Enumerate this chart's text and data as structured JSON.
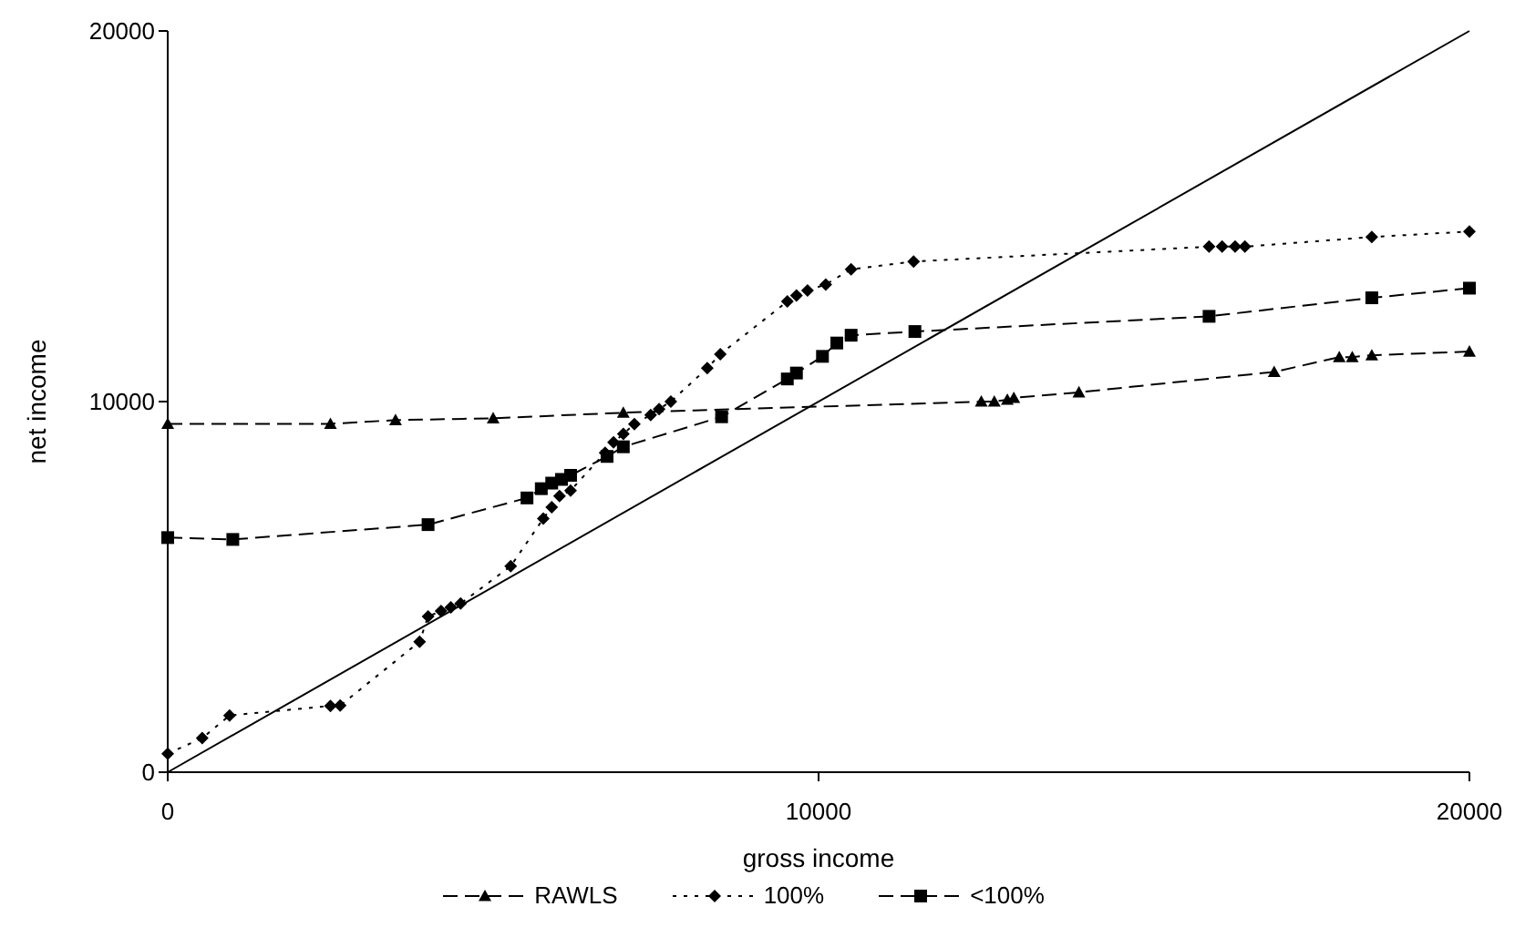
{
  "chart_data": {
    "type": "line",
    "xlabel": "gross income",
    "ylabel": "net income",
    "xlim": [
      0,
      20000
    ],
    "ylim": [
      0,
      20000
    ],
    "xticks": [
      0,
      10000,
      20000
    ],
    "yticks": [
      0,
      10000,
      20000
    ],
    "grid": false,
    "legend": "bottom",
    "series": [
      {
        "name": "RAWLS",
        "color": "#000000",
        "marker": "triangle",
        "line_style": "dashed",
        "x": [
          0,
          2500,
          3500,
          5000,
          7000,
          12500,
          12700,
          12900,
          13000,
          14000,
          17000,
          18000,
          18200,
          18500,
          20000
        ],
        "values": [
          9400,
          9400,
          9500,
          9550,
          9700,
          10000,
          10000,
          10050,
          10100,
          10250,
          10800,
          11200,
          11200,
          11250,
          11350
        ]
      },
      {
        "name": "100%",
        "color": "#000000",
        "marker": "diamond",
        "line_style": "dotted",
        "x": [
          0,
          530,
          950,
          2500,
          2650,
          3870,
          4000,
          4200,
          4350,
          4500,
          5270,
          5770,
          5900,
          6020,
          6190,
          6720,
          6850,
          7000,
          7170,
          7420,
          7550,
          7730,
          8290,
          8490,
          9520,
          9660,
          9830,
          10110,
          10500,
          11460,
          16000,
          16200,
          16400,
          16550,
          18500,
          20000
        ],
        "values": [
          500,
          920,
          1530,
          1790,
          1800,
          3520,
          4200,
          4350,
          4450,
          4550,
          5560,
          6840,
          7150,
          7450,
          7600,
          8620,
          8900,
          9130,
          9390,
          9640,
          9800,
          10000,
          10900,
          11280,
          12700,
          12860,
          13000,
          13160,
          13570,
          13780,
          14180,
          14180,
          14180,
          14180,
          14440,
          14590
        ]
      },
      {
        "name": "<100%",
        "color": "#000000",
        "marker": "square",
        "line_style": "dashed",
        "x": [
          0,
          1000,
          4000,
          5520,
          5740,
          5900,
          6050,
          6190,
          6750,
          7000,
          8510,
          9520,
          9660,
          10060,
          10280,
          10500,
          11480,
          16000,
          18500,
          20000
        ],
        "values": [
          6330,
          6280,
          6680,
          7400,
          7650,
          7800,
          7900,
          8010,
          8520,
          8780,
          9590,
          10610,
          10770,
          11220,
          11580,
          11790,
          11890,
          12300,
          12800,
          13060
        ]
      },
      {
        "type": "line",
        "color": "#000000",
        "marker": "none",
        "line_style": "solid",
        "x": [
          0,
          20000
        ],
        "values": [
          0,
          20000
        ]
      }
    ]
  }
}
